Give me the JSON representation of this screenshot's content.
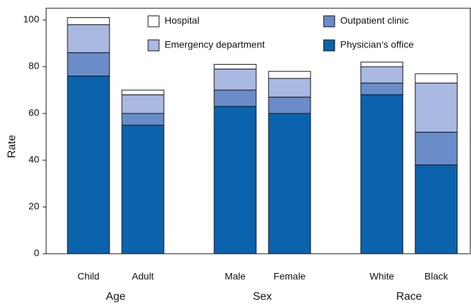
{
  "chart_data": {
    "type": "stacked-bar",
    "y_label": "Rate",
    "groups": [
      {
        "name": "Age",
        "categories": [
          "Child",
          "Adult"
        ]
      },
      {
        "name": "Sex",
        "categories": [
          "Male",
          "Female"
        ]
      },
      {
        "name": "Race",
        "categories": [
          "White",
          "Black"
        ]
      }
    ],
    "series": [
      {
        "name": "Physician’s office",
        "color": "#0b63ad",
        "values": [
          76,
          55,
          63,
          60,
          68,
          38
        ]
      },
      {
        "name": "Outpatient clinic",
        "color": "#6a8cc8",
        "values": [
          10,
          5,
          7,
          7,
          5,
          14
        ]
      },
      {
        "name": "Emergency department",
        "color": "#a9b9e2",
        "values": [
          12,
          8,
          9,
          8,
          7,
          21
        ]
      },
      {
        "name": "Hospital",
        "color": "#ffffff",
        "values": [
          3,
          2,
          2,
          3,
          2,
          4
        ]
      }
    ],
    "ylim": [
      0,
      105
    ],
    "yticks": [
      0,
      20,
      40,
      60,
      80,
      100
    ]
  }
}
